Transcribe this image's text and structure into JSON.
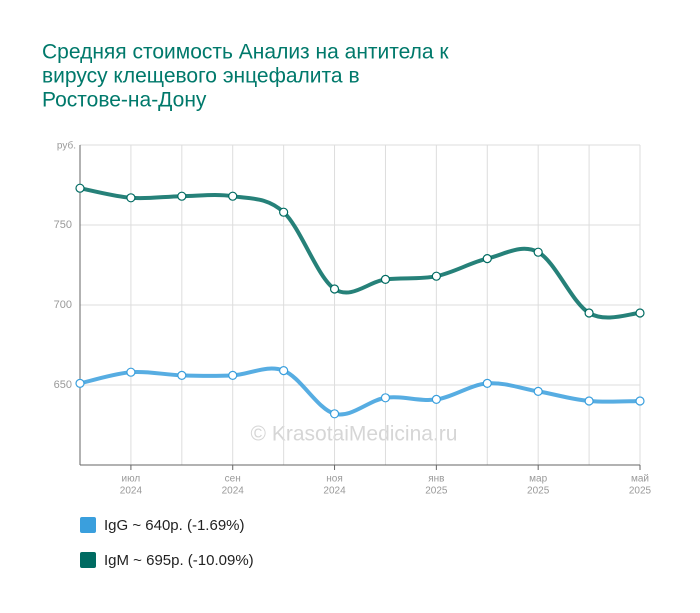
{
  "chart_data": {
    "type": "line",
    "title": [
      "Средняя стоимость Анализ на антитела к",
      "вирусу клещевого энцефалита в",
      "Ростове-на-Дону"
    ],
    "y_axis_label": "руб.",
    "watermark": "© KrasotaiMedicina.ru",
    "categories": [
      null,
      "июл",
      null,
      "сен",
      null,
      "ноя",
      null,
      "янв",
      null,
      "мар",
      null,
      "май"
    ],
    "category_years": [
      null,
      "2024",
      null,
      "2024",
      null,
      "2024",
      null,
      "2025",
      null,
      "2025",
      null,
      "2025"
    ],
    "series": [
      {
        "name": "IgG ~ 640р. (-1.69%)",
        "color": "#3a9fdd",
        "values": [
          651,
          658,
          656,
          656,
          659,
          632,
          642,
          641,
          651,
          646,
          640,
          640
        ]
      },
      {
        "name": "IgM ~ 695р. (-10.09%)",
        "color": "#006b62",
        "values": [
          773,
          767,
          768,
          768,
          758,
          710,
          716,
          718,
          729,
          733,
          695,
          695
        ]
      }
    ],
    "ylim": [
      600,
      800
    ],
    "yticks": [
      650,
      700,
      750
    ],
    "grid": true
  }
}
